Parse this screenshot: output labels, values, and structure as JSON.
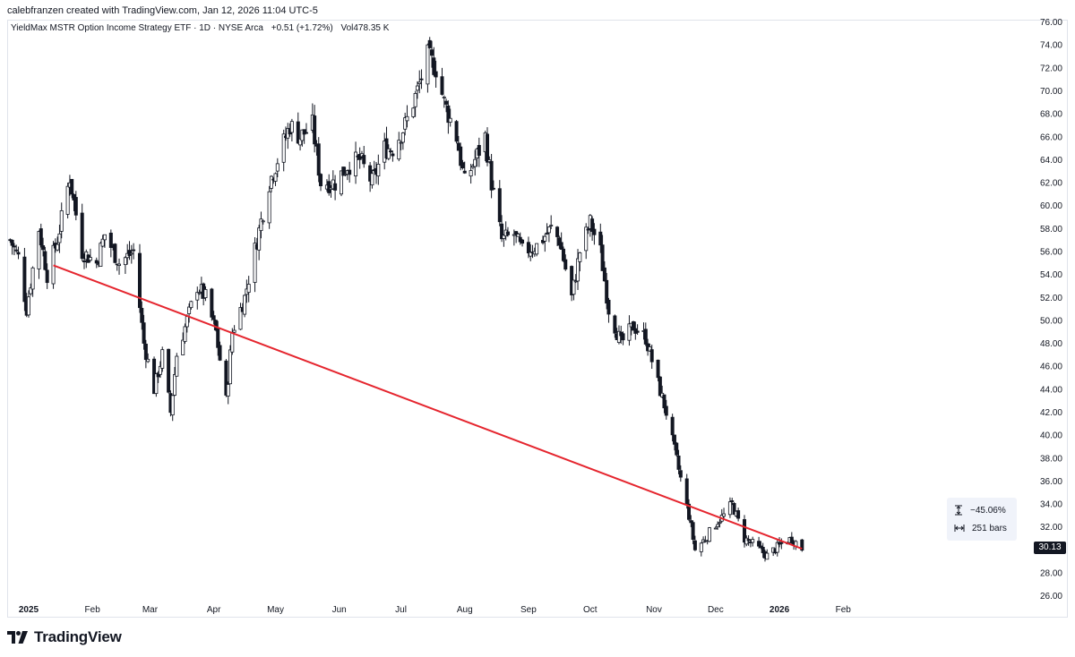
{
  "header": {
    "credit": "calebfranzen created with TradingView.com, Jan 12, 2026 11:04 UTC-5",
    "symbol_line": "YieldMax MSTR Option Income Strategy ETF · 1D · NYSE Arca",
    "change": "+0.51 (+1.72%)",
    "volume_label": "Vol",
    "volume_value": "478.35 K"
  },
  "measure": {
    "percent": "−45.06%",
    "bars": "251 bars"
  },
  "price_badge": "30.13",
  "branding": {
    "logo_text": "TradingView"
  },
  "colors": {
    "trendline": "#e5252e",
    "candle_down": "#131722",
    "candle_up_fill": "#ffffff",
    "grid": "#e0e3eb"
  },
  "chart_data": {
    "type": "candlestick",
    "y_axis": {
      "min": 26,
      "max": 76,
      "ticks": [
        "76.00",
        "74.00",
        "72.00",
        "70.00",
        "68.00",
        "66.00",
        "64.00",
        "62.00",
        "60.00",
        "58.00",
        "56.00",
        "54.00",
        "52.00",
        "50.00",
        "48.00",
        "46.00",
        "44.00",
        "42.00",
        "40.00",
        "38.00",
        "36.00",
        "34.00",
        "32.00",
        "30.00",
        "28.00",
        "26.00"
      ]
    },
    "x_axis": {
      "ticks": [
        {
          "label": "2025",
          "date": "2025-01-01",
          "bold": true
        },
        {
          "label": "Feb",
          "date": "2025-02-01"
        },
        {
          "label": "Mar",
          "date": "2025-03-01"
        },
        {
          "label": "Apr",
          "date": "2025-04-01"
        },
        {
          "label": "May",
          "date": "2025-05-01"
        },
        {
          "label": "Jun",
          "date": "2025-06-01"
        },
        {
          "label": "Jul",
          "date": "2025-07-01"
        },
        {
          "label": "Aug",
          "date": "2025-08-01"
        },
        {
          "label": "Sep",
          "date": "2025-09-01"
        },
        {
          "label": "Oct",
          "date": "2025-10-01"
        },
        {
          "label": "Nov",
          "date": "2025-11-01"
        },
        {
          "label": "Dec",
          "date": "2025-12-01"
        },
        {
          "label": "2026",
          "date": "2026-01-01",
          "bold": true
        },
        {
          "label": "Feb",
          "date": "2026-02-01"
        }
      ]
    },
    "trendline": [
      {
        "date": "2025-01-13",
        "price": 54.8
      },
      {
        "date": "2026-01-12",
        "price": 30.1
      }
    ],
    "close_path": [
      {
        "date": "2024-12-23",
        "price": 57
      },
      {
        "date": "2024-12-27",
        "price": 55.5
      },
      {
        "date": "2024-12-31",
        "price": 51
      },
      {
        "date": "2025-01-06",
        "price": 58
      },
      {
        "date": "2025-01-10",
        "price": 54
      },
      {
        "date": "2025-01-15",
        "price": 57
      },
      {
        "date": "2025-01-21",
        "price": 62.5
      },
      {
        "date": "2025-01-27",
        "price": 56
      },
      {
        "date": "2025-02-03",
        "price": 55
      },
      {
        "date": "2025-02-07",
        "price": 57.5
      },
      {
        "date": "2025-02-14",
        "price": 55
      },
      {
        "date": "2025-02-21",
        "price": 56
      },
      {
        "date": "2025-02-26",
        "price": 48
      },
      {
        "date": "2025-03-03",
        "price": 44
      },
      {
        "date": "2025-03-07",
        "price": 47
      },
      {
        "date": "2025-03-11",
        "price": 42
      },
      {
        "date": "2025-03-14",
        "price": 47
      },
      {
        "date": "2025-03-19",
        "price": 50
      },
      {
        "date": "2025-03-24",
        "price": 53
      },
      {
        "date": "2025-03-28",
        "price": 52
      },
      {
        "date": "2025-04-02",
        "price": 49
      },
      {
        "date": "2025-04-07",
        "price": 43
      },
      {
        "date": "2025-04-10",
        "price": 49
      },
      {
        "date": "2025-04-16",
        "price": 52
      },
      {
        "date": "2025-04-22",
        "price": 57
      },
      {
        "date": "2025-04-28",
        "price": 62
      },
      {
        "date": "2025-05-02",
        "price": 64
      },
      {
        "date": "2025-05-08",
        "price": 67
      },
      {
        "date": "2025-05-13",
        "price": 66
      },
      {
        "date": "2025-05-19",
        "price": 67
      },
      {
        "date": "2025-05-23",
        "price": 62
      },
      {
        "date": "2025-05-30",
        "price": 62
      },
      {
        "date": "2025-06-05",
        "price": 63.5
      },
      {
        "date": "2025-06-11",
        "price": 64
      },
      {
        "date": "2025-06-17",
        "price": 62
      },
      {
        "date": "2025-06-23",
        "price": 65
      },
      {
        "date": "2025-06-27",
        "price": 65
      },
      {
        "date": "2025-07-03",
        "price": 67
      },
      {
        "date": "2025-07-09",
        "price": 70
      },
      {
        "date": "2025-07-14",
        "price": 73
      },
      {
        "date": "2025-07-18",
        "price": 72
      },
      {
        "date": "2025-07-22",
        "price": 69
      },
      {
        "date": "2025-07-28",
        "price": 66
      },
      {
        "date": "2025-08-01",
        "price": 62
      },
      {
        "date": "2025-08-06",
        "price": 64
      },
      {
        "date": "2025-08-11",
        "price": 66
      },
      {
        "date": "2025-08-14",
        "price": 62
      },
      {
        "date": "2025-08-19",
        "price": 57
      },
      {
        "date": "2025-08-25",
        "price": 57.5
      },
      {
        "date": "2025-08-29",
        "price": 56
      },
      {
        "date": "2025-09-05",
        "price": 56.5
      },
      {
        "date": "2025-09-12",
        "price": 58
      },
      {
        "date": "2025-09-16",
        "price": 57
      },
      {
        "date": "2025-09-22",
        "price": 52
      },
      {
        "date": "2025-09-26",
        "price": 56
      },
      {
        "date": "2025-10-01",
        "price": 58.5
      },
      {
        "date": "2025-10-06",
        "price": 56
      },
      {
        "date": "2025-10-10",
        "price": 51
      },
      {
        "date": "2025-10-16",
        "price": 48
      },
      {
        "date": "2025-10-22",
        "price": 49.5
      },
      {
        "date": "2025-10-28",
        "price": 48.5
      },
      {
        "date": "2025-11-03",
        "price": 44.5
      },
      {
        "date": "2025-11-07",
        "price": 42
      },
      {
        "date": "2025-11-13",
        "price": 37
      },
      {
        "date": "2025-11-18",
        "price": 33
      },
      {
        "date": "2025-11-21",
        "price": 30
      },
      {
        "date": "2025-11-26",
        "price": 31
      },
      {
        "date": "2025-12-02",
        "price": 32.5
      },
      {
        "date": "2025-12-05",
        "price": 33
      },
      {
        "date": "2025-12-09",
        "price": 34
      },
      {
        "date": "2025-12-15",
        "price": 31
      },
      {
        "date": "2025-12-19",
        "price": 30.5
      },
      {
        "date": "2025-12-26",
        "price": 29.5
      },
      {
        "date": "2026-01-02",
        "price": 30.5
      },
      {
        "date": "2026-01-07",
        "price": 31
      },
      {
        "date": "2026-01-12",
        "price": 30.13
      }
    ]
  }
}
